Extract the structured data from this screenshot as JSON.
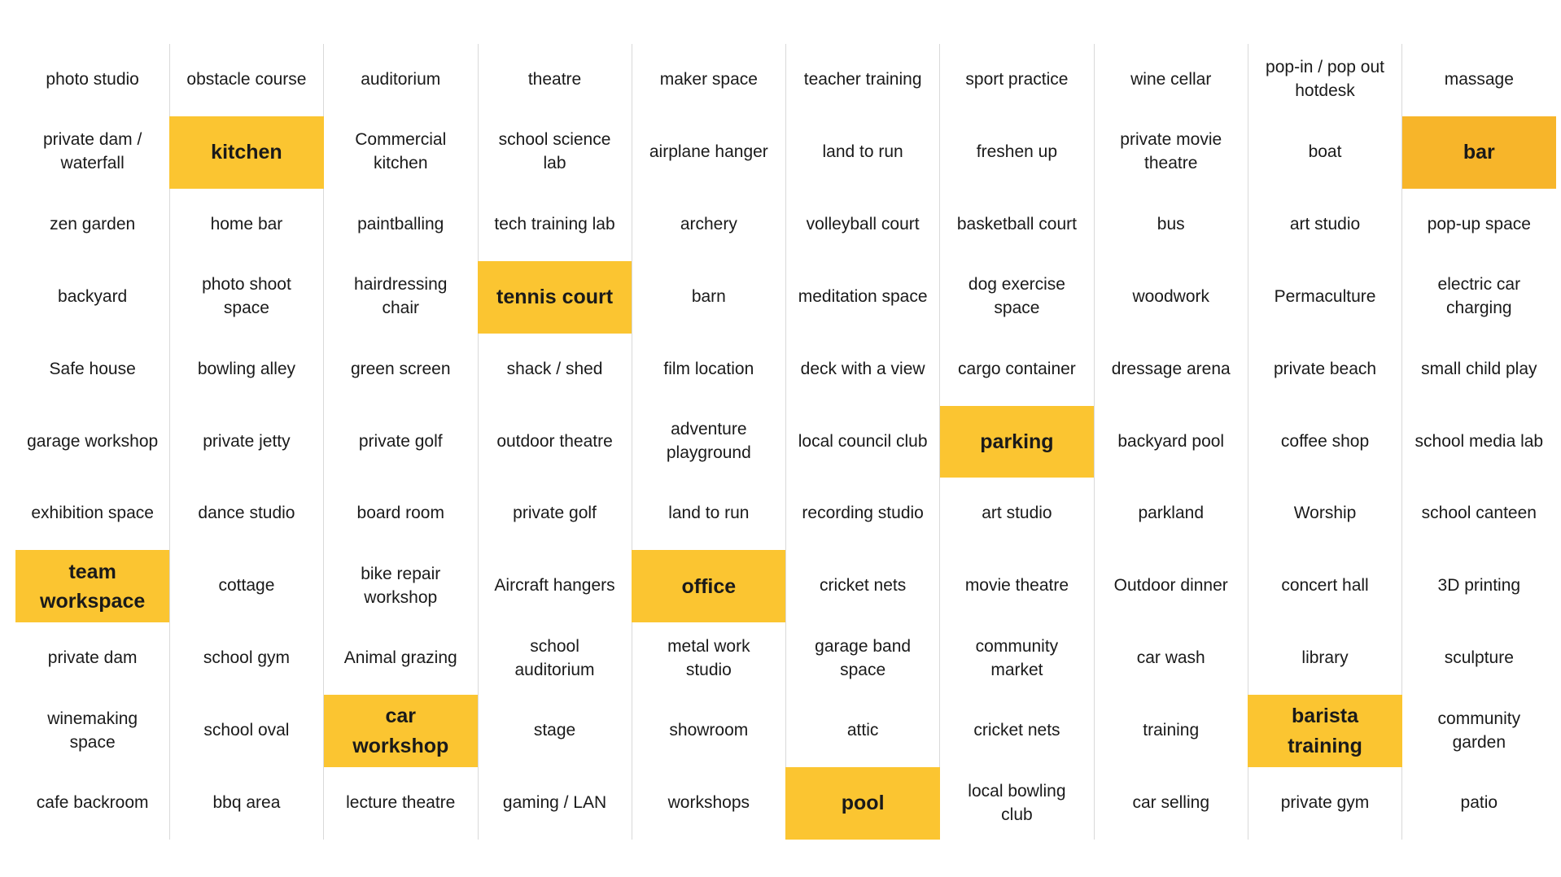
{
  "colors": {
    "highlight": "#fbc531",
    "highlight_deep": "#f7b52a",
    "divider": "#d9d9d9",
    "text": "#1a1a1a"
  },
  "columns": [
    [
      "photo studio",
      "private dam / waterfall",
      "zen garden",
      "backyard",
      "Safe house",
      "garage workshop",
      "exhibition space",
      "team workspace",
      "private dam",
      "winemaking space",
      "cafe backroom"
    ],
    [
      "obstacle course",
      "kitchen",
      "home bar",
      "photo shoot space",
      "bowling alley",
      "private jetty",
      "dance studio",
      "cottage",
      "school gym",
      "school oval",
      "bbq area"
    ],
    [
      "auditorium",
      "Commercial kitchen",
      "paintballing",
      "hairdressing chair",
      "green screen",
      "private golf",
      "board room",
      "bike repair workshop",
      "Animal grazing",
      "car workshop",
      "lecture theatre"
    ],
    [
      "theatre",
      "school science lab",
      "tech training lab",
      "tennis court",
      "shack / shed",
      "outdoor theatre",
      "private golf",
      "Aircraft hangers",
      "school auditorium",
      "stage",
      "gaming / LAN"
    ],
    [
      "maker space",
      "airplane hanger",
      "archery",
      "barn",
      "film location",
      "adventure playground",
      "land to run",
      "office",
      "metal work studio",
      "showroom",
      "workshops"
    ],
    [
      "teacher training",
      "land to run",
      "volleyball court",
      "meditation space",
      "deck with a view",
      "local council club",
      "recording studio",
      "cricket nets",
      "garage band space",
      "attic",
      "pool"
    ],
    [
      "sport practice",
      "freshen up",
      "basketball court",
      "dog exercise space",
      "cargo container",
      "parking",
      "art studio",
      "movie theatre",
      "community market",
      "cricket nets",
      "local bowling club"
    ],
    [
      "wine cellar",
      "private movie theatre",
      "bus",
      "woodwork",
      "dressage arena",
      "backyard pool",
      "parkland",
      "Outdoor dinner",
      "car wash",
      "training",
      "car selling"
    ],
    [
      "pop-in / pop out hotdesk",
      "boat",
      "art studio",
      "Permaculture",
      "private beach",
      "coffee shop",
      "Worship",
      "concert hall",
      "library",
      "barista training",
      "private gym"
    ],
    [
      "massage",
      "bar",
      "pop-up space",
      "electric car charging",
      "small child play",
      "school media lab",
      "school canteen",
      "3D printing",
      "sculpture",
      "community garden",
      "patio"
    ]
  ],
  "highlighted": [
    [
      0,
      7
    ],
    [
      1,
      1
    ],
    [
      2,
      9
    ],
    [
      3,
      3
    ],
    [
      4,
      7
    ],
    [
      5,
      10
    ],
    [
      6,
      5
    ],
    [
      8,
      9
    ],
    [
      9,
      1
    ]
  ]
}
